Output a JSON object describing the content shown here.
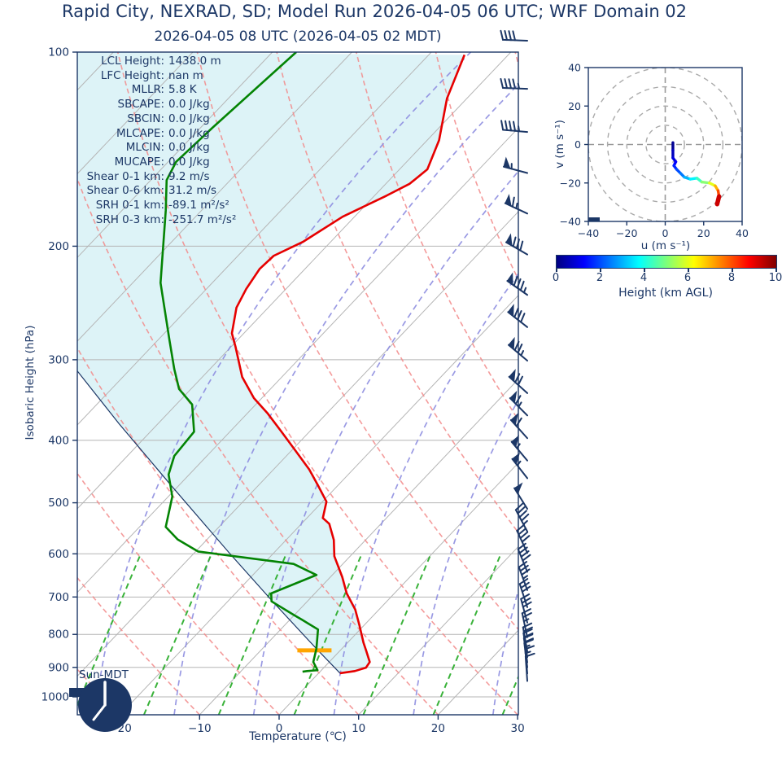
{
  "title": "Rapid City, NEXRAD, SD; Model Run 2026-04-05 06 UTC; WRF Domain 02",
  "subtitle": "2026-04-05 08 UTC  (2026-04-05 02 MDT)",
  "stats": {
    "lines": [
      {
        "label": "LCL Height:",
        "value": "1438.0 m"
      },
      {
        "label": "LFC Height:",
        "value": "nan m"
      },
      {
        "label": "MLLR:",
        "value": "5.8 K"
      },
      {
        "label": "SBCAPE:",
        "value": "0.0 J/kg"
      },
      {
        "label": "SBCIN:",
        "value": "0.0 J/kg"
      },
      {
        "label": "MLCAPE:",
        "value": "0.0 J/kg"
      },
      {
        "label": "MLCIN:",
        "value": "0.0 J/kg"
      },
      {
        "label": "MUCAPE:",
        "value": "0.0 J/kg"
      },
      {
        "label": "Shear 0-1 km:",
        "value": "9.2 m/s"
      },
      {
        "label": "Shear 0-6 km:",
        "value": "31.2 m/s"
      },
      {
        "label": "SRH 0-1 km:",
        "value": "-89.1 m²/s²"
      },
      {
        "label": "SRH 0-3 km:",
        "value": "-251.7 m²/s²"
      }
    ]
  },
  "skewt": {
    "xlabel": "Temperature (℃)",
    "ylabel": "Isobaric Height (hPa)",
    "timezone_label": "Sun-MDT",
    "x_ticks": [
      -20,
      -10,
      0,
      10,
      20,
      30
    ],
    "y_ticks": [
      100,
      200,
      300,
      400,
      500,
      600,
      700,
      800,
      900,
      1000
    ]
  },
  "hodograph": {
    "xlabel": "u (m s⁻¹)",
    "ylabel": "v (m s⁻¹)",
    "x_ticks": [
      -40,
      -20,
      0,
      20,
      40
    ],
    "y_ticks": [
      -40,
      -20,
      0,
      20,
      40
    ],
    "ring_radii": [
      10,
      20,
      30,
      40
    ]
  },
  "colorbar": {
    "label": "Height (km AGL)",
    "ticks": [
      0,
      2,
      4,
      6,
      8,
      10
    ],
    "min": 0,
    "max": 10
  },
  "colors": {
    "navy": "#1c3766",
    "temperature": "#e60000",
    "dewpoint": "#048404",
    "parcel": "#1c3766",
    "shade": "#ddf3f7",
    "lcl_marker": "#ffa500",
    "isotherm": "#b5b5b5",
    "isobar": "#b5b5b5",
    "dry_adiabat": "#f28a8a",
    "moist_adiabat": "#8e8ee0",
    "mixing_ratio": "#2fae2f",
    "hodo_ring": "#aaaaaa"
  },
  "chart_data": {
    "type": "skewt-logp",
    "pressure_axis_hpa": [
      100,
      1066
    ],
    "temperature_axis_c": [
      -25,
      30
    ],
    "temperature_profile": [
      [
        101,
        -55.5
      ],
      [
        118,
        -52.5
      ],
      [
        137,
        -48.5
      ],
      [
        152,
        -46.5
      ],
      [
        160,
        -47
      ],
      [
        167,
        -48.5
      ],
      [
        180,
        -51.5
      ],
      [
        197,
        -53.5
      ],
      [
        207,
        -55.5
      ],
      [
        217,
        -55.7
      ],
      [
        233,
        -55
      ],
      [
        249,
        -54
      ],
      [
        273,
        -51.5
      ],
      [
        286,
        -49.5
      ],
      [
        319,
        -45
      ],
      [
        344,
        -41
      ],
      [
        363,
        -37.5
      ],
      [
        388,
        -33.5
      ],
      [
        415,
        -29.5
      ],
      [
        444,
        -25.5
      ],
      [
        470,
        -22.5
      ],
      [
        498,
        -19.5
      ],
      [
        528,
        -18
      ],
      [
        539,
        -16.5
      ],
      [
        571,
        -14
      ],
      [
        605,
        -12
      ],
      [
        652,
        -8.5
      ],
      [
        691,
        -6
      ],
      [
        732,
        -3
      ],
      [
        776,
        -0.5
      ],
      [
        824,
        2
      ],
      [
        848,
        3.3
      ],
      [
        883,
        5.1
      ],
      [
        901,
        5.3
      ],
      [
        912,
        4.3
      ],
      [
        919,
        2.7
      ]
    ],
    "dewpoint_profile": [
      [
        100,
        -77
      ],
      [
        131,
        -78.5
      ],
      [
        148,
        -79
      ],
      [
        158,
        -78
      ],
      [
        176,
        -74.5
      ],
      [
        228,
        -66.5
      ],
      [
        280,
        -58.5
      ],
      [
        310,
        -54.5
      ],
      [
        333,
        -51.5
      ],
      [
        352,
        -48
      ],
      [
        388,
        -44.5
      ],
      [
        423,
        -44.1
      ],
      [
        452,
        -42.6
      ],
      [
        489,
        -39.5
      ],
      [
        545,
        -36.7
      ],
      [
        570,
        -33.7
      ],
      [
        595,
        -29.7
      ],
      [
        622,
        -16.2
      ],
      [
        647,
        -12
      ],
      [
        691,
        -15.5
      ],
      [
        711,
        -14.5
      ],
      [
        747,
        -10
      ],
      [
        759,
        -8.5
      ],
      [
        786,
        -5.3
      ],
      [
        842,
        -3.2
      ],
      [
        883,
        -2
      ],
      [
        909,
        -0.5
      ],
      [
        912,
        -1.7
      ],
      [
        914,
        -2.2
      ]
    ],
    "parcel_profile": [
      [
        919,
        2.7
      ],
      [
        842,
        -3.2
      ],
      [
        714,
        -14.1
      ],
      [
        599,
        -25.5
      ],
      [
        475,
        -40.3
      ],
      [
        377,
        -54.9
      ],
      [
        311,
        -66.7
      ]
    ],
    "lcl_marker": {
      "pressure": 847,
      "t_from": -5.4,
      "t_to": -1.1
    },
    "wind_barbs": [
      {
        "p": 96,
        "dir": 272,
        "kt": 40
      },
      {
        "p": 114,
        "dir": 272,
        "kt": 45
      },
      {
        "p": 133,
        "dir": 275,
        "kt": 45
      },
      {
        "p": 154,
        "dir": 285,
        "kt": 55
      },
      {
        "p": 178,
        "dir": 295,
        "kt": 65
      },
      {
        "p": 206,
        "dir": 300,
        "kt": 80
      },
      {
        "p": 238,
        "dir": 305,
        "kt": 85
      },
      {
        "p": 267,
        "dir": 308,
        "kt": 80
      },
      {
        "p": 301,
        "dir": 310,
        "kt": 75
      },
      {
        "p": 338,
        "dir": 312,
        "kt": 70
      },
      {
        "p": 366,
        "dir": 315,
        "kt": 65
      },
      {
        "p": 397,
        "dir": 318,
        "kt": 60
      },
      {
        "p": 430,
        "dir": 320,
        "kt": 55
      },
      {
        "p": 458,
        "dir": 322,
        "kt": 55
      },
      {
        "p": 511,
        "dir": 328,
        "kt": 50
      },
      {
        "p": 554,
        "dir": 332,
        "kt": 45
      },
      {
        "p": 598,
        "dir": 335,
        "kt": 40
      },
      {
        "p": 640,
        "dir": 338,
        "kt": 40
      },
      {
        "p": 683,
        "dir": 340,
        "kt": 35
      },
      {
        "p": 726,
        "dir": 342,
        "kt": 30
      },
      {
        "p": 767,
        "dir": 345,
        "kt": 30
      },
      {
        "p": 808,
        "dir": 348,
        "kt": 25
      },
      {
        "p": 850,
        "dir": 350,
        "kt": 20
      },
      {
        "p": 868,
        "dir": 351,
        "kt": 20
      },
      {
        "p": 884,
        "dir": 352,
        "kt": 20
      },
      {
        "p": 900,
        "dir": 353,
        "kt": 15
      },
      {
        "p": 920,
        "dir": 355,
        "kt": 15
      },
      {
        "p": 945,
        "dir": 356,
        "kt": 10
      }
    ],
    "hodograph_trace": [
      {
        "u": 4,
        "v": 1,
        "h": 0
      },
      {
        "u": 4,
        "v": -3,
        "h": 0.4
      },
      {
        "u": 4,
        "v": -7,
        "h": 0.8
      },
      {
        "u": 5.5,
        "v": -9,
        "h": 1.1
      },
      {
        "u": 4.5,
        "v": -11,
        "h": 1.4
      },
      {
        "u": 6,
        "v": -13,
        "h": 1.8
      },
      {
        "u": 8,
        "v": -15,
        "h": 2.2
      },
      {
        "u": 10,
        "v": -17,
        "h": 2.7
      },
      {
        "u": 13,
        "v": -18,
        "h": 3.3
      },
      {
        "u": 16.5,
        "v": -17.5,
        "h": 4.0
      },
      {
        "u": 19,
        "v": -19.5,
        "h": 4.7
      },
      {
        "u": 23,
        "v": -20,
        "h": 5.5
      },
      {
        "u": 26,
        "v": -21.5,
        "h": 6.5
      },
      {
        "u": 27.5,
        "v": -24,
        "h": 7.5
      },
      {
        "u": 28,
        "v": -27,
        "h": 8.5
      },
      {
        "u": 27,
        "v": -31,
        "h": 10
      }
    ]
  }
}
